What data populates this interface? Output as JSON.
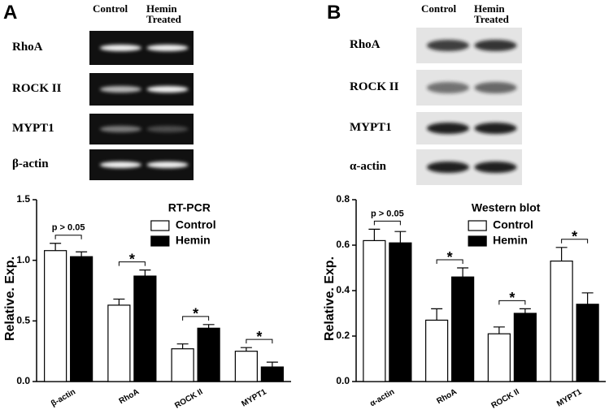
{
  "blots": [
    {
      "label": "A",
      "columns": [
        "Control",
        "Hemin Treated"
      ],
      "rows": [
        "RhoA",
        "ROCK II",
        "MYPT1",
        "β-actin"
      ],
      "kind": "gel"
    },
    {
      "label": "B",
      "columns": [
        "Control",
        "Hemin Treated"
      ],
      "rows": [
        "RhoA",
        "ROCK II",
        "MYPT1",
        "α-actin"
      ],
      "kind": "western"
    }
  ],
  "chart_data": [
    {
      "type": "bar",
      "title": "RT-PCR",
      "y_label": "Relative. Exp.",
      "categories": [
        "β-actin",
        "RhoA",
        "ROCK II",
        "MYPT1"
      ],
      "series": [
        {
          "name": "Control",
          "color": "#ffffff",
          "values": [
            1.08,
            0.63,
            0.27,
            0.25
          ],
          "errors": [
            0.06,
            0.05,
            0.04,
            0.03
          ]
        },
        {
          "name": "Hemin",
          "color": "#000000",
          "values": [
            1.03,
            0.87,
            0.44,
            0.12
          ],
          "errors": [
            0.04,
            0.05,
            0.03,
            0.04
          ]
        }
      ],
      "annotations": [
        "p > 0.05",
        "*",
        "*",
        "*"
      ],
      "ylim": [
        0,
        1.5
      ],
      "yticks": [
        {
          "value": 0,
          "label": "0.0"
        },
        0.5,
        {
          "value": 1,
          "label": "1.0"
        },
        1.5
      ],
      "legend": "upper right",
      "grid": false
    },
    {
      "type": "bar",
      "title": "Western blot",
      "y_label": "Relative. Exp.",
      "categories": [
        "α-actin",
        "RhoA",
        "ROCK II",
        "MYPT1"
      ],
      "series": [
        {
          "name": "Control",
          "color": "#ffffff",
          "values": [
            0.62,
            0.27,
            0.21,
            0.53
          ],
          "errors": [
            0.05,
            0.05,
            0.03,
            0.06
          ]
        },
        {
          "name": "Hemin",
          "color": "#000000",
          "values": [
            0.61,
            0.46,
            0.3,
            0.34
          ],
          "errors": [
            0.05,
            0.04,
            0.02,
            0.05
          ]
        }
      ],
      "annotations": [
        "p > 0.05",
        "*",
        "*",
        "*"
      ],
      "ylim": [
        0,
        0.8
      ],
      "yticks": [
        {
          "value": 0,
          "label": "0.0"
        },
        0.2,
        0.4,
        0.6,
        0.8
      ],
      "legend": "upper right",
      "grid": false
    }
  ]
}
